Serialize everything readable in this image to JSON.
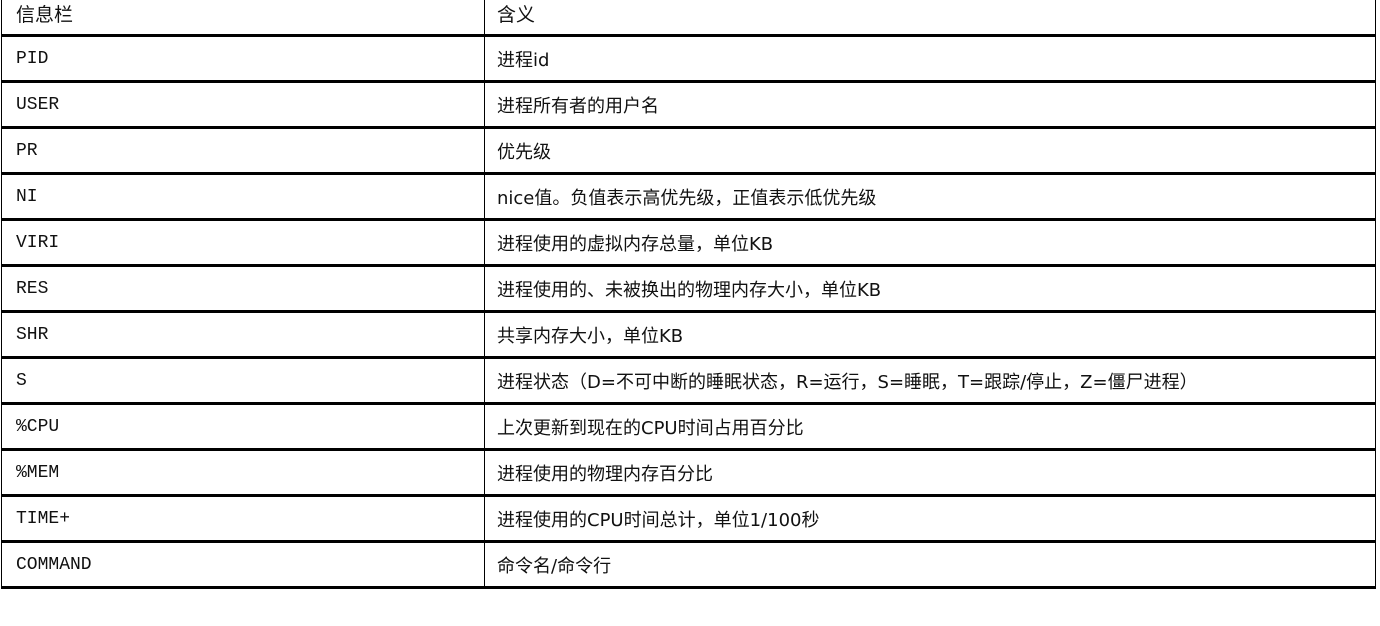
{
  "table": {
    "headers": [
      "信息栏",
      "含义"
    ],
    "rows": [
      {
        "field": "PID",
        "meaning": "进程id"
      },
      {
        "field": "USER",
        "meaning": "进程所有者的用户名"
      },
      {
        "field": "PR",
        "meaning": "优先级"
      },
      {
        "field": "NI",
        "meaning": "nice值。负值表示高优先级，正值表示低优先级"
      },
      {
        "field": "VIRI",
        "meaning": "进程使用的虚拟内存总量，单位KB"
      },
      {
        "field": "RES",
        "meaning": "进程使用的、未被换出的物理内存大小，单位KB"
      },
      {
        "field": "SHR",
        "meaning": "共享内存大小，单位KB"
      },
      {
        "field": "S",
        "meaning": "进程状态（D=不可中断的睡眠状态，R=运行，S=睡眠，T=跟踪/停止，Z=僵尸进程）"
      },
      {
        "field": "%CPU",
        "meaning": "上次更新到现在的CPU时间占用百分比"
      },
      {
        "field": "%MEM",
        "meaning": "进程使用的物理内存百分比"
      },
      {
        "field": "TIME+",
        "meaning": "进程使用的CPU时间总计，单位1/100秒"
      },
      {
        "field": "COMMAND",
        "meaning": "命令名/命令行"
      }
    ]
  }
}
